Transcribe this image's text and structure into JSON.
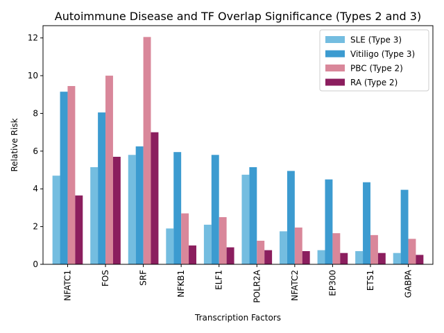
{
  "chart_data": {
    "type": "bar",
    "title": "Autoimmune Disease and TF Overlap Significance (Types 2 and 3)",
    "xlabel": "Transcription Factors",
    "ylabel": "Relative Risk",
    "ylim": [
      0,
      12.65
    ],
    "yticks": [
      0,
      2,
      4,
      6,
      8,
      10,
      12
    ],
    "legend_position": "top-right",
    "categories": [
      "NFATC1",
      "FOS",
      "SRF",
      "NFKB1",
      "ELF1",
      "POLR2A",
      "NFATC2",
      "EP300",
      "ETS1",
      "GABPA"
    ],
    "series": [
      {
        "name": "SLE (Type 3)",
        "color": "#74bde0",
        "values": [
          4.7,
          5.15,
          5.8,
          1.9,
          2.1,
          4.75,
          1.75,
          0.75,
          0.7,
          0.6
        ]
      },
      {
        "name": "Vitiligo (Type 3)",
        "color": "#3c9bd0",
        "values": [
          9.15,
          8.05,
          6.25,
          5.95,
          5.8,
          5.15,
          4.95,
          4.5,
          4.35,
          3.95
        ]
      },
      {
        "name": "PBC (Type 2)",
        "color": "#d9879a",
        "values": [
          9.45,
          10.0,
          12.05,
          2.7,
          2.5,
          1.25,
          1.95,
          1.65,
          1.55,
          1.35
        ]
      },
      {
        "name": "RA (Type 2)",
        "color": "#8b1e5e",
        "values": [
          3.65,
          5.7,
          7.0,
          1.0,
          0.9,
          0.75,
          0.7,
          0.6,
          0.6,
          0.5
        ]
      }
    ]
  }
}
